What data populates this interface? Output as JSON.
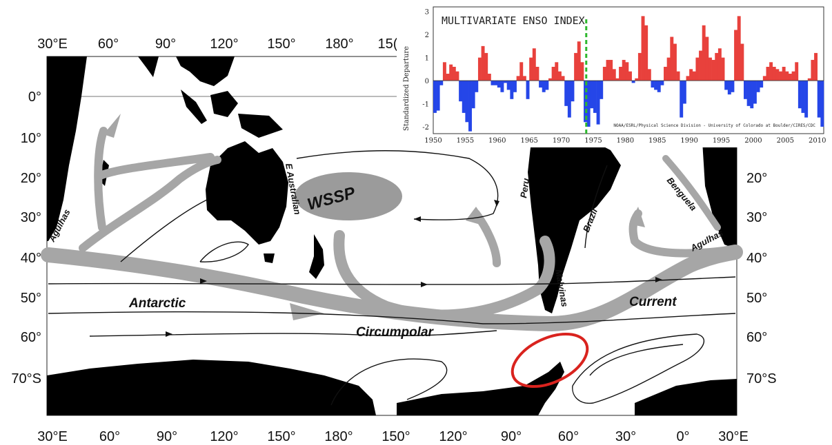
{
  "map": {
    "top_longitudes": [
      "30°E",
      "60°",
      "90°",
      "120°",
      "150°",
      "180°",
      "15("
    ],
    "bottom_longitudes": [
      "30°E",
      "60°",
      "90°",
      "120°",
      "150°",
      "180°",
      "150°",
      "120°",
      "90°",
      "60°",
      "30°",
      "0°",
      "30°E"
    ],
    "left_latitudes": [
      "0°",
      "10°",
      "20°",
      "30°",
      "40°",
      "50°",
      "60°",
      "70°S"
    ],
    "right_latitudes": [
      "20°",
      "30°",
      "40°",
      "50°",
      "60°",
      "70°S"
    ],
    "ocean_labels": {
      "w1": "Antarctic",
      "w2": "Circumpolar",
      "w3": "Current"
    },
    "region_label": "WSSP",
    "current_labels": {
      "agulhas_west": "Agulhas",
      "e_australian": "E Australian",
      "peru": "Peru",
      "brazil": "Brazil",
      "benguela": "Benguela",
      "agulhas_east": "Agulhas",
      "malvinas": "Malvinas"
    },
    "colors": {
      "land": "#000000",
      "flow_band": "#a6a6a6",
      "highlight_ring": "#d9231e"
    }
  },
  "enso_inset": {
    "title": "MULTIVARIATE ENSO INDEX",
    "credit": "NOAA/ESRL/Physical Science Division - University of Colorado at Boulder/CIRES/CDC",
    "marker_year": 1973.9,
    "marker_color": "#2db82d",
    "positive_color": "#e8413c",
    "negative_color": "#2546e8"
  },
  "chart_data": {
    "type": "area",
    "title": "MULTIVARIATE ENSO INDEX",
    "ylabel": "Standardized Departure",
    "xlabel": "",
    "xlim": [
      1950,
      2011
    ],
    "ylim": [
      -2.3,
      3.2
    ],
    "x_ticks": [
      1950,
      1955,
      1960,
      1965,
      1970,
      1975,
      1980,
      1985,
      1990,
      1995,
      2000,
      2005,
      2010
    ],
    "y_ticks": [
      -2,
      -1,
      0,
      1,
      2,
      3
    ],
    "series": [
      {
        "x": [
          1950,
          1950.5,
          1951,
          1951.5,
          1952,
          1952.5,
          1953,
          1953.5,
          1954,
          1954.5,
          1955,
          1955.5,
          1956,
          1956.5,
          1957,
          1957.5,
          1958,
          1958.5,
          1959,
          1959.5,
          1960,
          1960.5,
          1961,
          1961.5,
          1962,
          1962.5,
          1963,
          1963.5,
          1964,
          1964.5,
          1965,
          1965.5,
          1966,
          1966.5,
          1967,
          1967.5,
          1968,
          1968.5,
          1969,
          1969.5,
          1970,
          1970.5,
          1971,
          1971.5,
          1972,
          1972.5,
          1973,
          1973.5,
          1974,
          1974.5,
          1975,
          1975.5,
          1976,
          1976.5,
          1977,
          1977.5,
          1978,
          1978.5,
          1979,
          1979.5,
          1980,
          1980.5,
          1981,
          1981.5,
          1982,
          1982.5,
          1983,
          1983.5,
          1984,
          1984.5,
          1985,
          1985.5,
          1986,
          1986.5,
          1987,
          1987.5,
          1988,
          1988.5,
          1989,
          1989.5,
          1990,
          1990.5,
          1991,
          1991.5,
          1992,
          1992.5,
          1993,
          1993.5,
          1994,
          1994.5,
          1995,
          1995.5,
          1996,
          1996.5,
          1997,
          1997.5,
          1998,
          1998.5,
          1999,
          1999.5,
          2000,
          2000.5,
          2001,
          2001.5,
          2002,
          2002.5,
          2003,
          2003.5,
          2004,
          2004.5,
          2005,
          2005.5,
          2006,
          2006.5,
          2007,
          2007.5,
          2008,
          2008.5,
          2009,
          2009.5,
          2010,
          2010.5
        ],
        "values": [
          -1.4,
          -1.3,
          -0.2,
          0.8,
          0.3,
          0.7,
          0.6,
          0.4,
          -0.9,
          -1.4,
          -1.8,
          -2.2,
          -1.2,
          -0.5,
          1.0,
          1.5,
          1.2,
          0.3,
          -0.2,
          -0.2,
          -0.3,
          -0.5,
          -0.1,
          -0.4,
          -0.8,
          -0.5,
          0.2,
          0.8,
          0.2,
          -0.8,
          1.0,
          1.4,
          0.6,
          -0.3,
          -0.5,
          -0.4,
          0.1,
          0.6,
          0.8,
          0.4,
          0.2,
          -1.1,
          -1.6,
          -0.9,
          1.2,
          1.7,
          0.8,
          -1.8,
          -2.0,
          -1.2,
          -1.4,
          -1.9,
          -0.8,
          0.6,
          0.9,
          0.9,
          0.5,
          0.1,
          0.6,
          0.9,
          0.8,
          0.4,
          -0.1,
          0.1,
          1.2,
          2.8,
          2.4,
          0.5,
          -0.3,
          -0.4,
          -0.5,
          -0.2,
          0.6,
          1.0,
          1.9,
          1.6,
          0.4,
          -1.6,
          -1.0,
          0.2,
          0.5,
          0.4,
          1.0,
          1.3,
          2.4,
          1.9,
          1.0,
          0.9,
          1.2,
          1.4,
          1.0,
          -0.4,
          -0.6,
          -0.5,
          2.2,
          2.8,
          1.6,
          -0.8,
          -1.1,
          -1.2,
          -1.0,
          -0.5,
          -0.3,
          0.2,
          0.6,
          0.8,
          0.6,
          0.5,
          0.4,
          0.6,
          0.4,
          0.3,
          0.4,
          0.8,
          -1.2,
          -1.4,
          -1.6,
          0.1,
          0.9,
          1.2,
          -1.6,
          -2.0
        ]
      }
    ]
  }
}
